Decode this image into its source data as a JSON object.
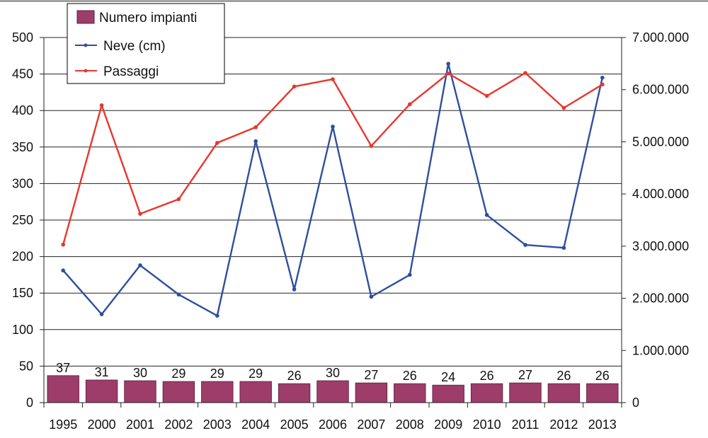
{
  "chart_data": {
    "type": "bar",
    "categories": [
      "1995",
      "2000",
      "2001",
      "2002",
      "2003",
      "2004",
      "2005",
      "2006",
      "2007",
      "2008",
      "2009",
      "2010",
      "2011",
      "2012",
      "2013"
    ],
    "series": [
      {
        "name": "Numero impianti",
        "type": "bar",
        "axis": "left",
        "color": "#9e3c6a",
        "values": [
          37,
          31,
          30,
          29,
          29,
          29,
          26,
          30,
          27,
          26,
          24,
          26,
          27,
          26,
          26
        ]
      },
      {
        "name": "Neve (cm)",
        "type": "line",
        "axis": "left",
        "color": "#2e4f9e",
        "values": [
          181,
          121,
          188,
          148,
          119,
          358,
          155,
          378,
          145,
          175,
          464,
          257,
          216,
          212,
          445
        ]
      },
      {
        "name": "Passaggi",
        "type": "line",
        "axis": "right",
        "color": "#e8362c",
        "values": [
          3030000,
          5700000,
          3620000,
          3900000,
          4980000,
          5280000,
          6060000,
          6200000,
          4920000,
          5720000,
          6310000,
          5880000,
          6320000,
          5650000,
          6100000
        ]
      }
    ],
    "y_left": {
      "range": [
        0,
        500
      ],
      "ticks": [
        "0",
        "50",
        "100",
        "150",
        "200",
        "250",
        "300",
        "350",
        "400",
        "450",
        "500"
      ]
    },
    "y_right": {
      "range": [
        0,
        7000000
      ],
      "ticks": [
        "0",
        "1.000.000",
        "2.000.000",
        "3.000.000",
        "4.000.000",
        "5.000.000",
        "6.000.000",
        "7.000.000"
      ]
    },
    "bar_labels": [
      "37",
      "31",
      "30",
      "29",
      "29",
      "29",
      "26",
      "30",
      "27",
      "26",
      "24",
      "26",
      "27",
      "26",
      "26"
    ],
    "grid": true,
    "legend_position": "top-left"
  }
}
